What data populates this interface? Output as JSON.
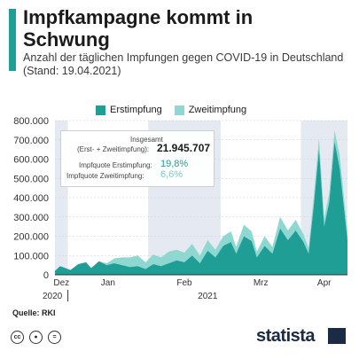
{
  "header": {
    "title": "Impfkampagne kommt in Schwung",
    "subtitle": "Anzahl der täglichen Impfungen gegen COVID-19 in Deutschland (Stand: 19.04.2021)"
  },
  "legend": {
    "first_label": "Erstimpfung",
    "second_label": "Zweitimpfung"
  },
  "info_box": {
    "total_label": "Insgesamt",
    "total_sublabel": "(Erst- + Zweitimpfung):",
    "total_value": "21.945.707",
    "quote_first_label": "Impfquote Erstimpfung:",
    "quote_first_value": "19,8%",
    "quote_second_label": "Impfquote Zweitimpfung:",
    "quote_second_value": "6,6%"
  },
  "footer": {
    "source": "Quelle: RKI",
    "brand": "statista"
  },
  "icons": [
    "cc-icon",
    "by-icon",
    "nd-icon"
  ],
  "colors": {
    "accent": "#1f9e95",
    "first": "#1f9e95",
    "second": "#8fd8d2",
    "month_band": "#e4e9f2",
    "text_second": "#7fcbc6"
  },
  "chart_data": {
    "type": "area",
    "stacked": true,
    "x_start": "2020-12-27",
    "x_end": "2021-04-19",
    "ylim": [
      0,
      800000
    ],
    "yticks": [
      "0",
      "100.000",
      "200.000",
      "300.000",
      "400.000",
      "500.000",
      "600.000",
      "700.000",
      "800.000"
    ],
    "ytick_values": [
      0,
      100000,
      200000,
      300000,
      400000,
      500000,
      600000,
      700000,
      800000
    ],
    "month_labels": [
      "Dez",
      "Jan",
      "Feb",
      "Mrz",
      "Apr"
    ],
    "month_starts": [
      "2020-12-27",
      "2021-01-01",
      "2021-02-01",
      "2021-03-01",
      "2021-04-01"
    ],
    "year_labels": [
      "2020",
      "2021"
    ],
    "grid": true,
    "legend_position": "top",
    "series": [
      {
        "name": "Erstimpfung",
        "points": [
          [
            "2020-12-27",
            20000
          ],
          [
            "2020-12-29",
            45000
          ],
          [
            "2020-12-31",
            35000
          ],
          [
            "2021-01-02",
            25000
          ],
          [
            "2021-01-05",
            55000
          ],
          [
            "2021-01-08",
            65000
          ],
          [
            "2021-01-10",
            35000
          ],
          [
            "2021-01-13",
            70000
          ],
          [
            "2021-01-16",
            50000
          ],
          [
            "2021-01-19",
            60000
          ],
          [
            "2021-01-22",
            50000
          ],
          [
            "2021-01-25",
            40000
          ],
          [
            "2021-01-28",
            45000
          ],
          [
            "2021-01-31",
            30000
          ],
          [
            "2021-02-03",
            55000
          ],
          [
            "2021-02-06",
            45000
          ],
          [
            "2021-02-09",
            60000
          ],
          [
            "2021-02-12",
            75000
          ],
          [
            "2021-02-15",
            65000
          ],
          [
            "2021-02-18",
            100000
          ],
          [
            "2021-02-21",
            60000
          ],
          [
            "2021-02-24",
            125000
          ],
          [
            "2021-02-27",
            90000
          ],
          [
            "2021-03-02",
            150000
          ],
          [
            "2021-03-05",
            170000
          ],
          [
            "2021-03-07",
            110000
          ],
          [
            "2021-03-10",
            200000
          ],
          [
            "2021-03-13",
            175000
          ],
          [
            "2021-03-15",
            90000
          ],
          [
            "2021-03-18",
            150000
          ],
          [
            "2021-03-21",
            110000
          ],
          [
            "2021-03-24",
            240000
          ],
          [
            "2021-03-27",
            180000
          ],
          [
            "2021-03-30",
            230000
          ],
          [
            "2021-04-02",
            170000
          ],
          [
            "2021-04-04",
            110000
          ],
          [
            "2021-04-06",
            360000
          ],
          [
            "2021-04-08",
            650000
          ],
          [
            "2021-04-10",
            250000
          ],
          [
            "2021-04-12",
            380000
          ],
          [
            "2021-04-14",
            690000
          ],
          [
            "2021-04-16",
            550000
          ],
          [
            "2021-04-19",
            180000
          ]
        ]
      },
      {
        "name": "Zweitimpfung",
        "points": [
          [
            "2020-12-27",
            0
          ],
          [
            "2020-12-29",
            0
          ],
          [
            "2020-12-31",
            0
          ],
          [
            "2021-01-02",
            0
          ],
          [
            "2021-01-05",
            0
          ],
          [
            "2021-01-08",
            0
          ],
          [
            "2021-01-10",
            0
          ],
          [
            "2021-01-13",
            0
          ],
          [
            "2021-01-16",
            10000
          ],
          [
            "2021-01-19",
            25000
          ],
          [
            "2021-01-22",
            40000
          ],
          [
            "2021-01-25",
            50000
          ],
          [
            "2021-01-28",
            55000
          ],
          [
            "2021-01-31",
            35000
          ],
          [
            "2021-02-03",
            50000
          ],
          [
            "2021-02-06",
            45000
          ],
          [
            "2021-02-09",
            60000
          ],
          [
            "2021-02-12",
            55000
          ],
          [
            "2021-02-15",
            50000
          ],
          [
            "2021-02-18",
            60000
          ],
          [
            "2021-02-21",
            40000
          ],
          [
            "2021-02-24",
            55000
          ],
          [
            "2021-02-27",
            40000
          ],
          [
            "2021-03-02",
            50000
          ],
          [
            "2021-03-05",
            55000
          ],
          [
            "2021-03-07",
            35000
          ],
          [
            "2021-03-10",
            60000
          ],
          [
            "2021-03-13",
            50000
          ],
          [
            "2021-03-15",
            30000
          ],
          [
            "2021-03-18",
            50000
          ],
          [
            "2021-03-21",
            35000
          ],
          [
            "2021-03-24",
            60000
          ],
          [
            "2021-03-27",
            50000
          ],
          [
            "2021-03-30",
            55000
          ],
          [
            "2021-04-02",
            40000
          ],
          [
            "2021-04-04",
            30000
          ],
          [
            "2021-04-06",
            50000
          ],
          [
            "2021-04-08",
            60000
          ],
          [
            "2021-04-10",
            40000
          ],
          [
            "2021-04-12",
            50000
          ],
          [
            "2021-04-14",
            60000
          ],
          [
            "2021-04-16",
            70000
          ],
          [
            "2021-04-19",
            40000
          ]
        ]
      }
    ]
  }
}
